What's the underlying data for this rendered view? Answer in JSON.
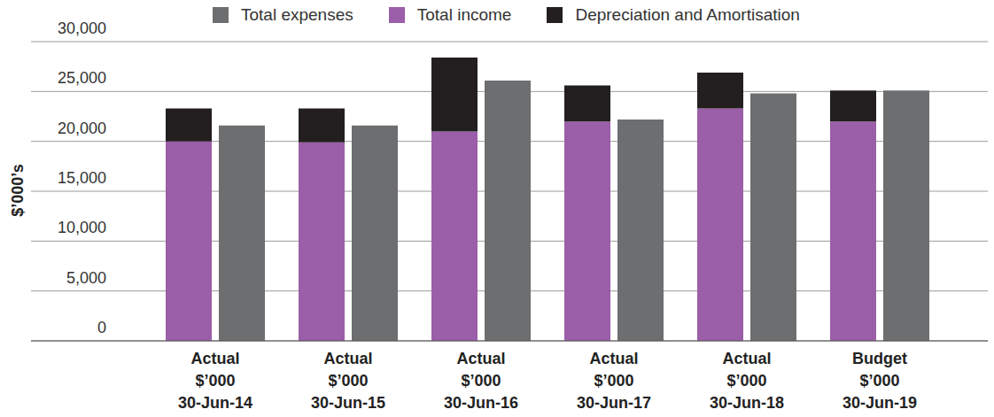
{
  "chart_data": {
    "type": "bar",
    "y_label": "$’000’s",
    "categories": [
      "Actual\n$’000\n30-Jun-14",
      "Actual\n$’000\n30-Jun-15",
      "Actual\n$’000\n30-Jun-16",
      "Actual\n$’000\n30-Jun-17",
      "Actual\n$’000\n30-Jun-18",
      "Budget\n$’000\n30-Jun-19"
    ],
    "series": [
      {
        "name": "Total expenses",
        "color": "#6d6e70",
        "stacked": false,
        "values": [
          21600,
          21600,
          26100,
          22200,
          24800,
          25100
        ]
      },
      {
        "name": "Total income",
        "color": "#9b5ea8",
        "stacked": true,
        "values": [
          20000,
          19900,
          21000,
          22000,
          23300,
          22000
        ]
      },
      {
        "name": "Depreciation and Amortisation",
        "color": "#231f20",
        "stacked": true,
        "values": [
          3300,
          3400,
          7400,
          3600,
          3600,
          3100
        ]
      }
    ],
    "ylim": [
      0,
      30000
    ],
    "yticks": [
      0,
      {
        "value": 5000,
        "label": "5,000"
      },
      {
        "value": 10000,
        "label": "10,000"
      },
      {
        "value": 15000,
        "label": "15,000"
      },
      {
        "value": 20000,
        "label": "20,000"
      },
      {
        "value": 25000,
        "label": "25,000"
      },
      {
        "value": 30000,
        "label": "30,000"
      }
    ],
    "grid": true,
    "legend": "top"
  }
}
